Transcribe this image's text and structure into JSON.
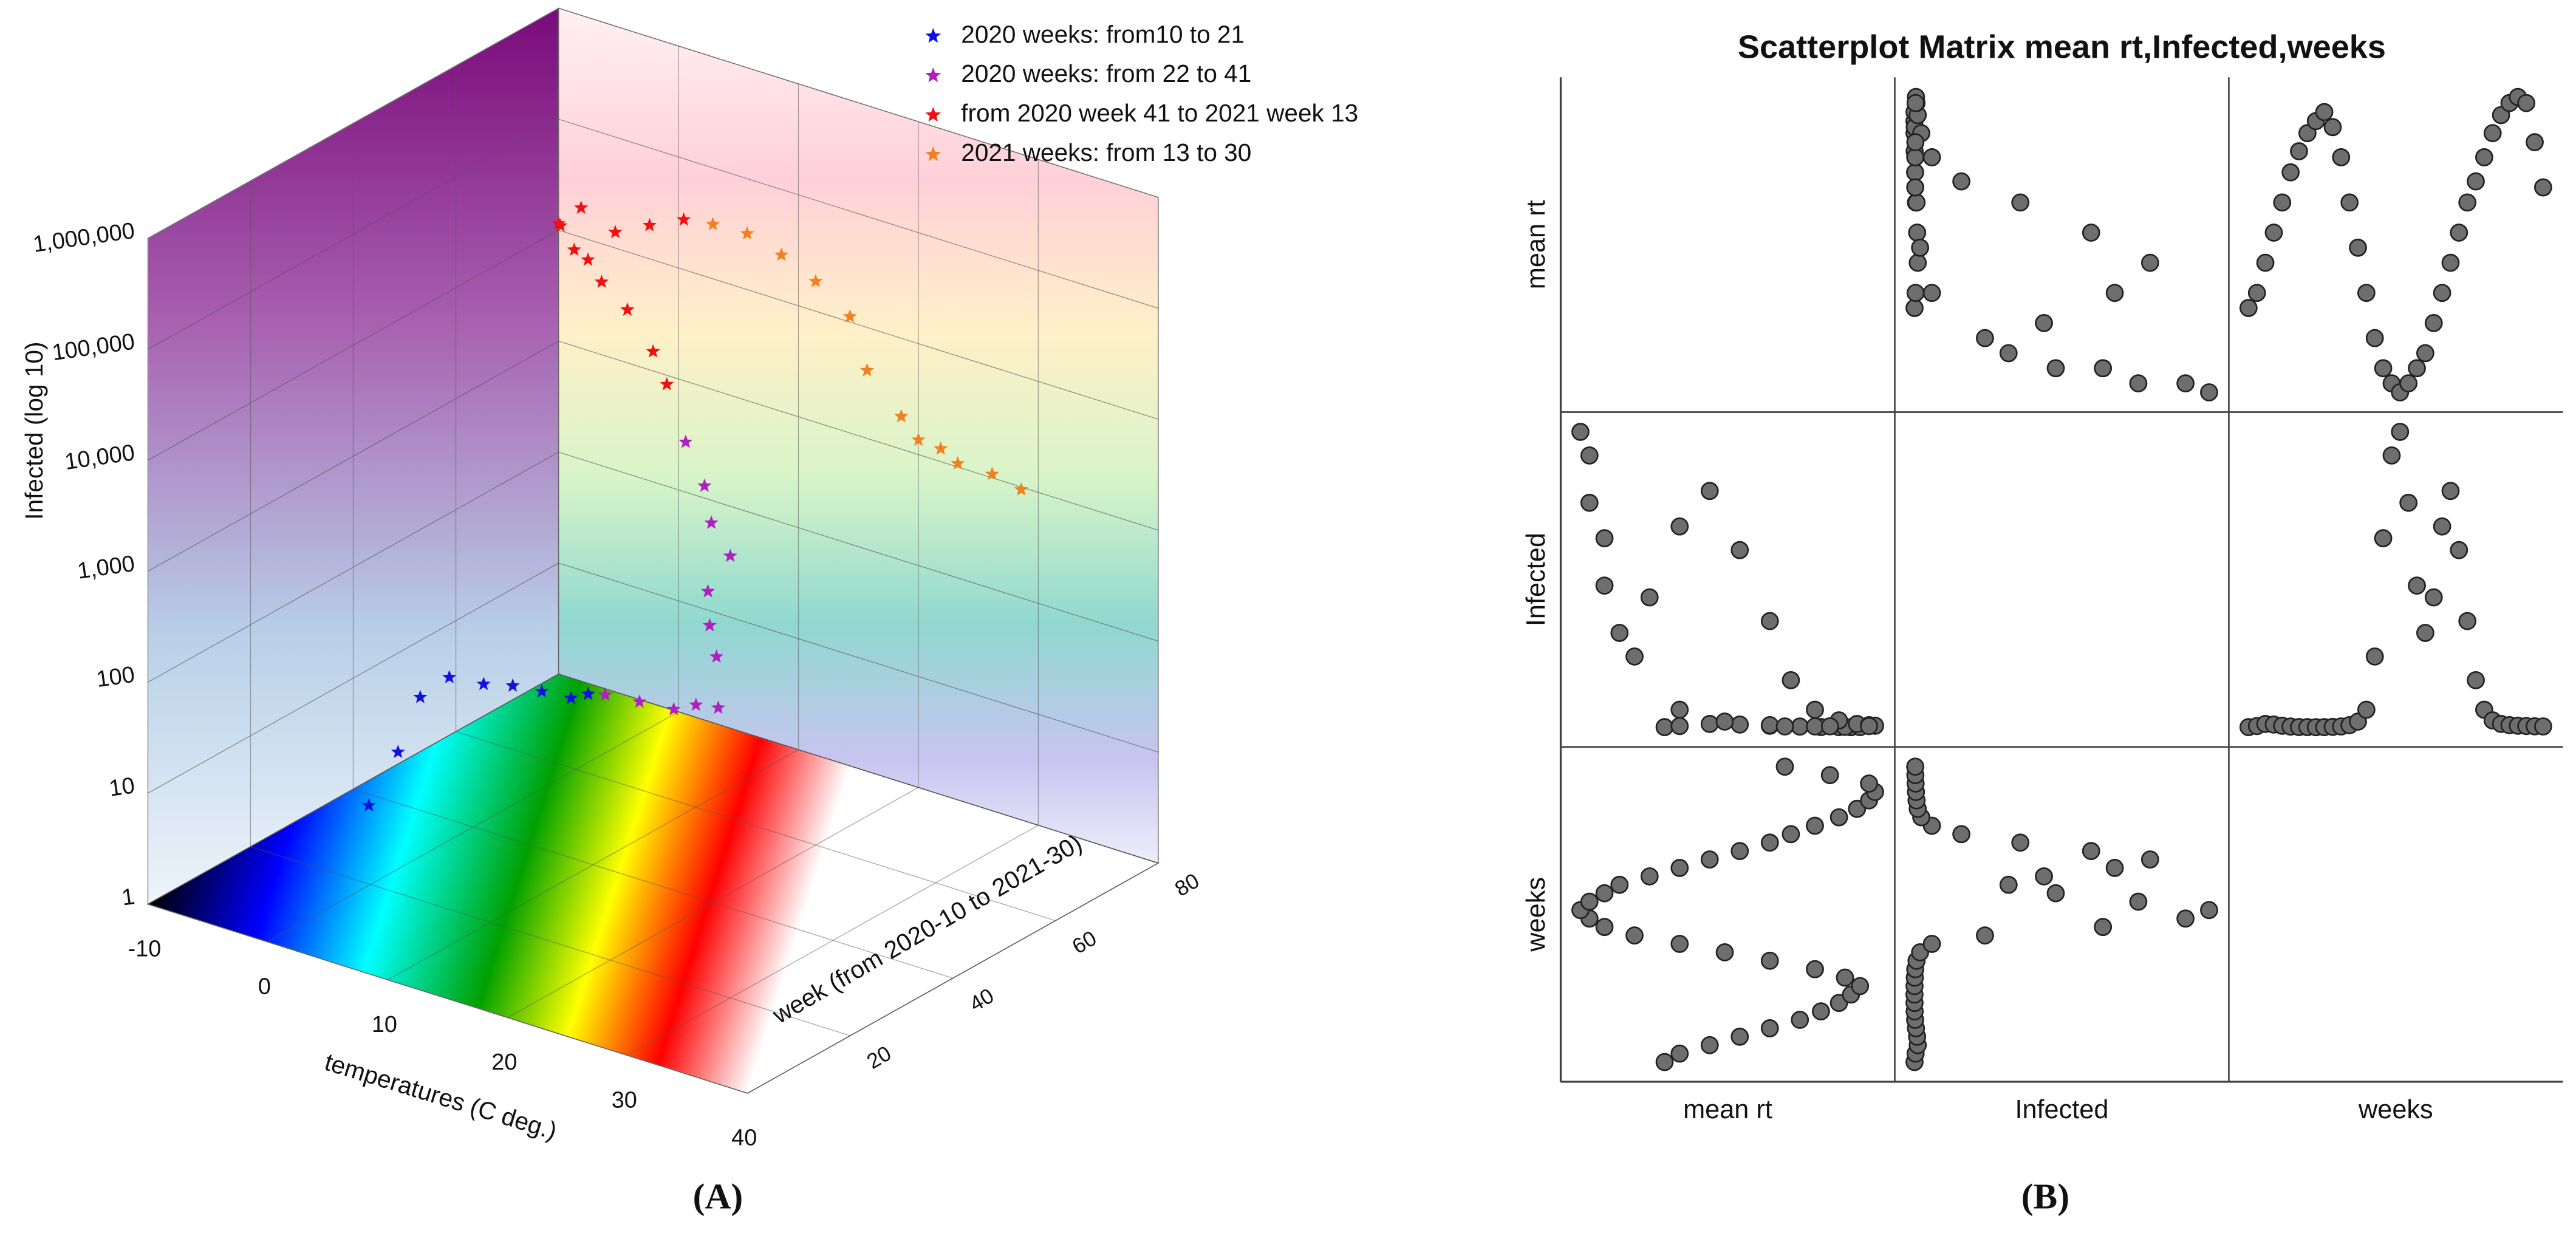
{
  "chart_data": [
    {
      "type": "scatter3d",
      "panel_label": "(A)",
      "x_label": "temperatures (C deg.)",
      "y_label": "week  (from 2020-10 to 2021-30)",
      "z_label": "Infected (log 10)",
      "xlim": [
        -10,
        40
      ],
      "xticks": [
        -10,
        0,
        10,
        20,
        30,
        40
      ],
      "ylim": [
        0,
        80
      ],
      "yticks": [
        20,
        40,
        60,
        80
      ],
      "zlim": [
        1,
        1000000
      ],
      "zscale": "log",
      "zticks": [
        1,
        10,
        100,
        {
          "value": 1000,
          "label": "1,000"
        },
        {
          "value": 10000,
          "label": "10,000"
        },
        {
          "value": 100000,
          "label": "100,000"
        },
        {
          "value": 1000000,
          "label": "1,000,000"
        }
      ],
      "series": [
        {
          "name": "2020 weeks: from10 to 21",
          "color": "#1010e0",
          "temperature": [
            8,
            10,
            11,
            13,
            15,
            17,
            19,
            21,
            22
          ],
          "week": [
            1,
            2,
            4,
            5,
            7,
            8,
            9,
            10,
            11
          ],
          "values": [
            30,
            100,
            300,
            500,
            450,
            480,
            470,
            450,
            500
          ]
        },
        {
          "name": "2020 weeks: from 22 to 41",
          "color": "#b020c0",
          "temperature": [
            23,
            25,
            27,
            28,
            29,
            28,
            27,
            26,
            27,
            25,
            24,
            22
          ],
          "week": [
            12,
            14,
            16,
            18,
            20,
            22,
            23,
            25,
            27,
            28,
            29,
            30
          ],
          "values": [
            500,
            450,
            400,
            420,
            380,
            900,
            1500,
            2500,
            5000,
            8000,
            15000,
            30000
          ]
        },
        {
          "name": "from 2020 week 41 to 2021 week 13",
          "color": "#f01010",
          "temperature": [
            20,
            18,
            15,
            12,
            10,
            8,
            6,
            5,
            6,
            8,
            10,
            12
          ],
          "week": [
            31,
            33,
            35,
            37,
            39,
            41,
            43,
            45,
            47,
            49,
            51,
            53
          ],
          "values": [
            80000,
            120000,
            200000,
            250000,
            300000,
            280000,
            350000,
            300000,
            400000,
            250000,
            300000,
            350000
          ]
        },
        {
          "name": "2021 weeks: from 13 to 30",
          "color": "#f08020",
          "temperature": [
            14,
            16,
            18,
            20,
            22,
            23,
            25,
            26,
            27,
            28,
            30,
            32
          ],
          "week": [
            54,
            56,
            58,
            60,
            62,
            63,
            65,
            66,
            68,
            69,
            71,
            72
          ],
          "values": [
            350000,
            300000,
            200000,
            120000,
            60000,
            20000,
            8000,
            5000,
            4000,
            3000,
            2500,
            2000
          ]
        }
      ]
    },
    {
      "type": "scatter_matrix",
      "panel_label": "(B)",
      "title": "Scatterplot Matrix mean rt,Infected,weeks",
      "marker_color": "#6e6e6e",
      "variables": [
        {
          "name": "mean rt",
          "values": [
            0.8,
            0.85,
            0.95,
            1.05,
            1.15,
            1.25,
            1.32,
            1.38,
            1.42,
            1.45,
            1.4,
            1.3,
            1.15,
            1.0,
            0.85,
            0.7,
            0.6,
            0.55,
            0.52,
            0.55,
            0.6,
            0.65,
            0.75,
            0.85,
            0.95,
            1.05,
            1.15,
            1.22,
            1.3,
            1.38,
            1.44,
            1.48,
            1.5,
            1.48,
            1.35,
            1.2
          ]
        },
        {
          "name": "Infected",
          "values": [
            300,
            1200,
            3000,
            2500,
            1500,
            800,
            400,
            300,
            250,
            300,
            500,
            900,
            2000,
            5000,
            15000,
            60000,
            160000,
            230000,
            250000,
            190000,
            120000,
            80000,
            110000,
            170000,
            200000,
            150000,
            90000,
            40000,
            15000,
            6000,
            3000,
            2000,
            1500,
            1200,
            1000,
            900
          ]
        },
        {
          "name": "weeks",
          "values": [
            1,
            3,
            5,
            7,
            9,
            11,
            13,
            15,
            17,
            19,
            21,
            23,
            25,
            27,
            29,
            31,
            33,
            35,
            37,
            39,
            41,
            43,
            45,
            47,
            49,
            51,
            53,
            55,
            57,
            59,
            61,
            63,
            65,
            67,
            69,
            71
          ]
        }
      ]
    }
  ]
}
